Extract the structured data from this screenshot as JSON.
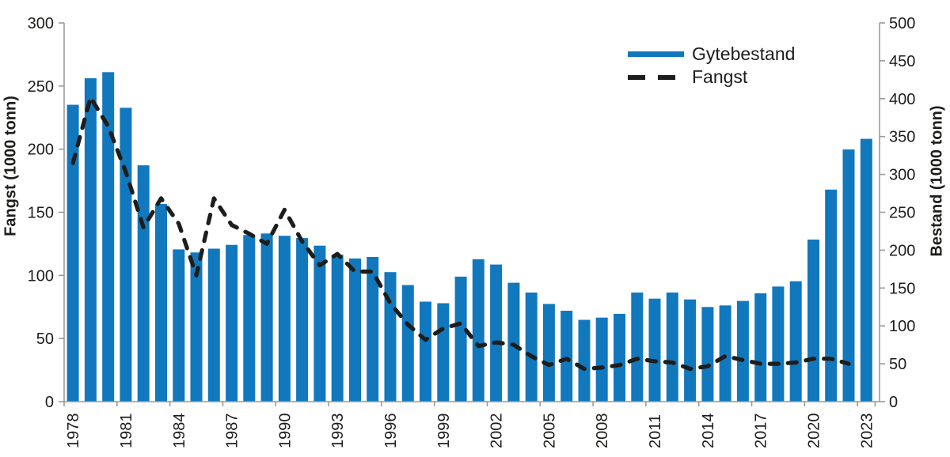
{
  "chart_data": {
    "type": "bar",
    "subtype": "combo-bar-and-dashed-line",
    "title": "",
    "categories": [
      1978,
      1979,
      1980,
      1981,
      1982,
      1983,
      1984,
      1985,
      1986,
      1987,
      1988,
      1989,
      1990,
      1991,
      1992,
      1993,
      1994,
      1995,
      1996,
      1997,
      1998,
      1999,
      2000,
      2001,
      2002,
      2003,
      2004,
      2005,
      2006,
      2007,
      2008,
      2009,
      2010,
      2011,
      2012,
      2013,
      2014,
      2015,
      2016,
      2017,
      2018,
      2019,
      2020,
      2021,
      2022,
      2023
    ],
    "series": [
      {
        "name": "Gytebestand",
        "type": "bar",
        "axis": "right",
        "color": "#1178be",
        "values": [
          392,
          427,
          435,
          388,
          312,
          261,
          201,
          197,
          202,
          207,
          220,
          222,
          219,
          216,
          206,
          194,
          189,
          191,
          171,
          154,
          132,
          130,
          165,
          188,
          181,
          157,
          144,
          129,
          120,
          108,
          111,
          116,
          144,
          136,
          144,
          135,
          125,
          127,
          133,
          143,
          152,
          159,
          214,
          280,
          333,
          347
        ]
      },
      {
        "name": "Fangst",
        "type": "line",
        "style": "dashed",
        "axis": "left",
        "color": "#1d1d1b",
        "values": [
          189,
          241,
          218,
          182,
          138,
          161,
          141,
          100,
          161,
          140,
          133,
          125,
          152,
          127,
          108,
          117,
          103,
          103,
          78,
          61,
          49,
          58,
          62,
          44,
          47,
          45,
          36,
          29,
          34,
          26,
          27,
          29,
          34,
          32,
          31,
          26,
          28,
          36,
          33,
          30,
          30,
          31,
          34,
          34,
          30,
          null
        ]
      }
    ],
    "left_axis": {
      "title": "Fangst (1000 tonn)",
      "min": 0,
      "max": 300,
      "step": 50,
      "ticks": [
        0,
        50,
        100,
        150,
        200,
        250,
        300
      ]
    },
    "right_axis": {
      "title": "Bestand (1000 tonn)",
      "min": 0,
      "max": 500,
      "step": 50,
      "ticks": [
        0,
        50,
        100,
        150,
        200,
        250,
        300,
        350,
        400,
        450,
        500
      ]
    },
    "x_tick_labels": [
      "1978",
      "1981",
      "1984",
      "1987",
      "1990",
      "1993",
      "1996",
      "1999",
      "2002",
      "2005",
      "2008",
      "2011",
      "2014",
      "2017",
      "2020",
      "2023"
    ],
    "grid": "off",
    "legend_position": "top-right"
  }
}
